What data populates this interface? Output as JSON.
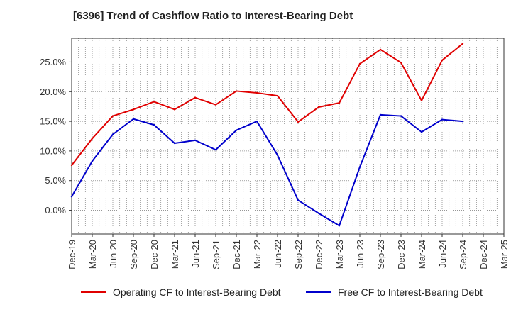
{
  "chart_data": {
    "type": "line",
    "title": "[6396]  Trend of Cashflow Ratio to Interest-Bearing Debt",
    "xlabel": "",
    "ylabel": "",
    "categories": [
      "Dec-19",
      "Mar-20",
      "Jun-20",
      "Sep-20",
      "Dec-20",
      "Mar-21",
      "Jun-21",
      "Sep-21",
      "Dec-21",
      "Mar-22",
      "Jun-22",
      "Sep-22",
      "Dec-22",
      "Mar-23",
      "Jun-23",
      "Sep-23",
      "Dec-23",
      "Mar-24",
      "Jun-24",
      "Sep-24",
      "Dec-24",
      "Mar-25"
    ],
    "yticks": [
      0,
      5,
      10,
      15,
      20,
      25
    ],
    "ytick_labels": [
      "0.0%",
      "5.0%",
      "10.0%",
      "15.0%",
      "20.0%",
      "25.0%"
    ],
    "ylim": [
      -4,
      29
    ],
    "grid": true,
    "legend_position": "bottom",
    "series": [
      {
        "name": "Operating CF to Interest-Bearing Debt",
        "color": "#e00000",
        "values": [
          7.6,
          12.1,
          15.9,
          17.0,
          18.3,
          17.0,
          19.0,
          17.8,
          20.1,
          19.8,
          19.3,
          14.9,
          17.4,
          18.1,
          24.7,
          27.1,
          24.9,
          18.5,
          25.3,
          28.1,
          null,
          null
        ]
      },
      {
        "name": "Free CF to Interest-Bearing Debt",
        "color": "#0000cc",
        "values": [
          2.3,
          8.3,
          12.8,
          15.4,
          14.4,
          11.3,
          11.8,
          10.2,
          13.5,
          15.0,
          9.3,
          1.7,
          -0.5,
          -2.6,
          7.3,
          16.1,
          15.9,
          13.2,
          15.3,
          15.0,
          null,
          null
        ]
      }
    ]
  }
}
